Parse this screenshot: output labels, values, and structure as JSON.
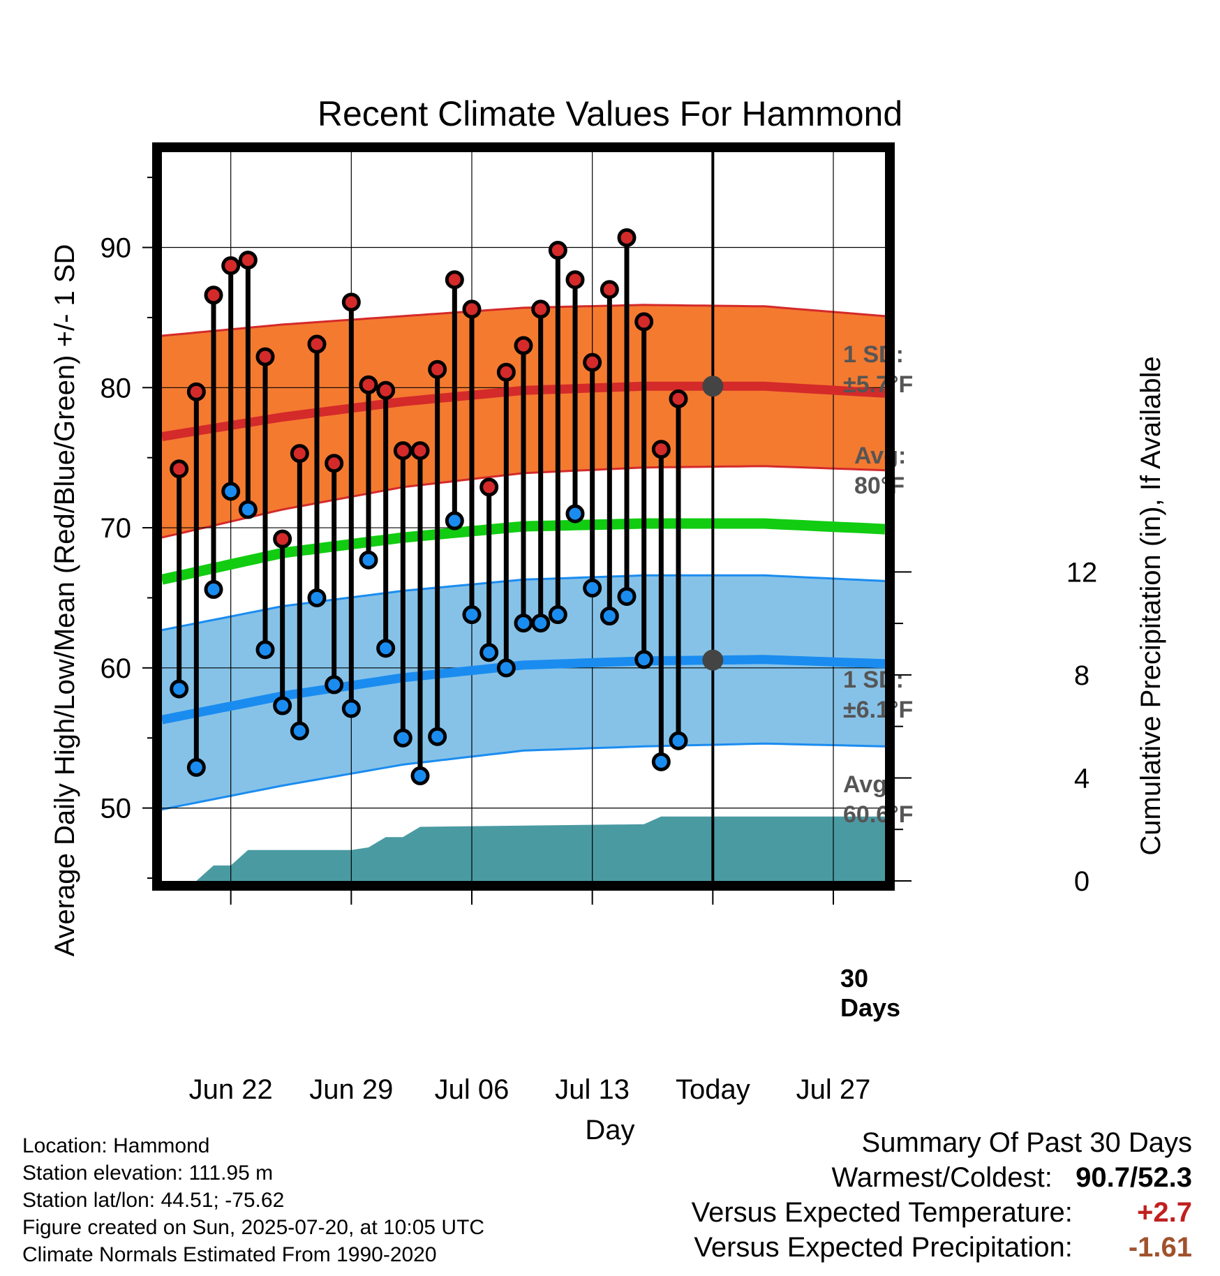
{
  "chart_data": {
    "type": "line",
    "title": "Recent Climate Values For Hammond",
    "xlabel": "Day",
    "ylabel": "Average Daily High/Low/Mean (Red/Blue/Green) +/- 1 SD",
    "y2label": "Cumulative Precipitation (in), If Available",
    "ylim": [
      44.8,
      96.8
    ],
    "y2lim": [
      0,
      28.3
    ],
    "x_range": [
      "2025-06-18",
      "2025-07-30"
    ],
    "x_ticks": [
      {
        "date": "2025-06-22",
        "label": "Jun 22"
      },
      {
        "date": "2025-06-29",
        "label": "Jun 29"
      },
      {
        "date": "2025-07-06",
        "label": "Jul 06"
      },
      {
        "date": "2025-07-13",
        "label": "Jul 13"
      },
      {
        "date": "2025-07-20",
        "label": "Today"
      },
      {
        "date": "2025-07-27",
        "label": "Jul 27"
      }
    ],
    "y_ticks": [
      50,
      60,
      70,
      80,
      90
    ],
    "y2_ticks": [
      0,
      4,
      8,
      12
    ],
    "grid": true,
    "today": "2025-07-20",
    "normals_dates": [
      "2025-06-18",
      "2025-06-25",
      "2025-07-02",
      "2025-07-09",
      "2025-07-16",
      "2025-07-23",
      "2025-07-30"
    ],
    "normal_high_mean": [
      76.5,
      77.9,
      79.0,
      79.8,
      80.1,
      80.1,
      79.6
    ],
    "normal_high_sd": [
      7.2,
      6.6,
      6.1,
      5.9,
      5.8,
      5.7,
      5.5
    ],
    "normal_low_mean": [
      56.3,
      58.0,
      59.3,
      60.2,
      60.5,
      60.6,
      60.3
    ],
    "normal_low_sd": [
      6.4,
      6.4,
      6.2,
      6.1,
      6.1,
      6.0,
      5.9
    ],
    "normal_avg_mean": [
      66.3,
      68.2,
      69.3,
      70.1,
      70.3,
      70.3,
      69.9
    ],
    "daily": {
      "dates": [
        "2025-06-19",
        "2025-06-20",
        "2025-06-21",
        "2025-06-22",
        "2025-06-23",
        "2025-06-24",
        "2025-06-25",
        "2025-06-26",
        "2025-06-27",
        "2025-06-28",
        "2025-06-29",
        "2025-06-30",
        "2025-07-01",
        "2025-07-02",
        "2025-07-03",
        "2025-07-04",
        "2025-07-05",
        "2025-07-06",
        "2025-07-07",
        "2025-07-08",
        "2025-07-09",
        "2025-07-10",
        "2025-07-11",
        "2025-07-12",
        "2025-07-13",
        "2025-07-14",
        "2025-07-15",
        "2025-07-16",
        "2025-07-17",
        "2025-07-18",
        "2025-07-19"
      ],
      "high": [
        74.2,
        79.7,
        86.6,
        88.7,
        89.1,
        82.2,
        69.2,
        75.3,
        83.1,
        74.6,
        86.1,
        80.2,
        79.8,
        75.5,
        75.5,
        81.3,
        87.7,
        85.6,
        72.9,
        81.1,
        83.0,
        85.6,
        89.8,
        87.7,
        81.8,
        87.0,
        90.7,
        84.7,
        75.6,
        79.2,
        null
      ],
      "low": [
        58.5,
        52.9,
        65.6,
        72.6,
        71.3,
        61.3,
        57.3,
        55.5,
        65.0,
        58.8,
        57.1,
        67.7,
        61.4,
        55.0,
        52.3,
        55.1,
        70.5,
        63.8,
        61.1,
        60.0,
        63.2,
        63.2,
        63.8,
        71.0,
        65.7,
        63.7,
        65.1,
        60.6,
        53.3,
        54.8,
        null
      ]
    },
    "cumulative_precip": {
      "dates": [
        "2025-06-20",
        "2025-06-21",
        "2025-06-22",
        "2025-06-23",
        "2025-06-24",
        "2025-06-29",
        "2025-06-30",
        "2025-07-01",
        "2025-07-02",
        "2025-07-03",
        "2025-07-16",
        "2025-07-17",
        "2025-07-30"
      ],
      "values": [
        0.0,
        0.6,
        0.6,
        1.2,
        1.2,
        1.2,
        1.3,
        1.7,
        1.7,
        2.1,
        2.2,
        2.5,
        2.5
      ]
    },
    "annotations": {
      "high_sd_line1": "1 SD:",
      "high_sd_line2": "±5.7°F",
      "high_avg_line1": "Avg:",
      "high_avg_line2": "80°F",
      "low_sd_line1": "1 SD:",
      "low_sd_line2": "±6.1°F",
      "low_avg_line1": "Avg:",
      "low_avg_line2": "60.6°F",
      "days_line1": "30",
      "days_line2": "Days"
    },
    "colors": {
      "high_band": "#f47a30",
      "high_mean": "#d42a2a",
      "low_band": "#86c2e8",
      "low_mean": "#1a8cf0",
      "avg_mean": "#11cc11",
      "precip": "#4a9aa2",
      "high_marker": "#d42a2a",
      "low_marker": "#1a8cf0",
      "today_dot": "#444444",
      "annotation_text": "#555555"
    }
  },
  "footer": {
    "location": "Location: Hammond",
    "elevation": "Station elevation: 111.95 m",
    "latlon": "Station lat/lon: 44.51; -75.62",
    "created": "Figure created on Sun, 2025-07-20, at 10:05 UTC",
    "normals": "Climate Normals Estimated From 1990-2020"
  },
  "summary": {
    "title": "Summary Of Past 30 Days",
    "warmest_label": "Warmest/Coldest:",
    "warmest_value": "90.7",
    "coldest_value": "52.3",
    "temp_label": "Versus Expected Temperature:",
    "temp_value": "+2.7",
    "precip_label": "Versus Expected Precipitation:",
    "precip_value": "-1.61"
  }
}
